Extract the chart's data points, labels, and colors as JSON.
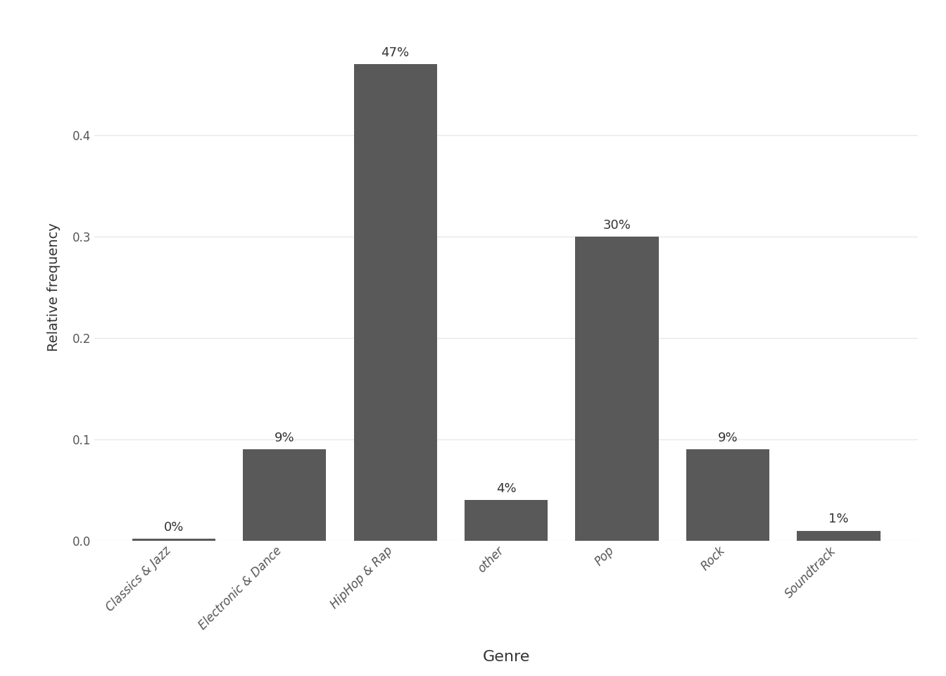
{
  "categories": [
    "Classics & Jazz",
    "Electronic & Dance",
    "HipHop & Rap",
    "other",
    "Pop",
    "Rock",
    "Soundtrack"
  ],
  "values": [
    0.002,
    0.09,
    0.47,
    0.04,
    0.3,
    0.09,
    0.01
  ],
  "labels": [
    "0%",
    "9%",
    "47%",
    "4%",
    "30%",
    "9%",
    "1%"
  ],
  "bar_color": "#595959",
  "background_color": "#ffffff",
  "grid_color": "#e8e8e8",
  "xlabel": "Genre",
  "ylabel": "Relative frequency",
  "xlabel_fontsize": 16,
  "ylabel_fontsize": 14,
  "tick_fontsize": 12,
  "label_fontsize": 13,
  "ylim": [
    0,
    0.5
  ],
  "yticks": [
    0.0,
    0.1,
    0.2,
    0.3,
    0.4
  ]
}
